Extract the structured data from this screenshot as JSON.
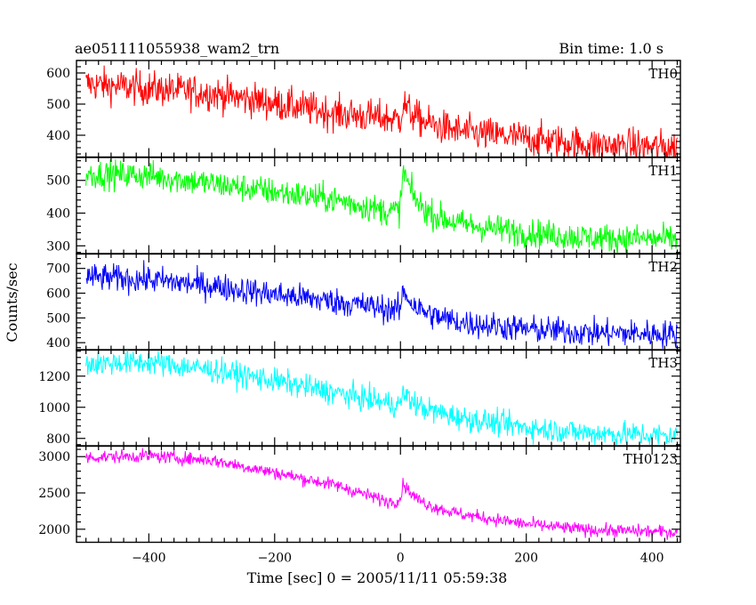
{
  "header": {
    "title": "ae051111055938_wam2_trn",
    "bin_time": "Bin time: 1.0 s"
  },
  "axes": {
    "xlabel": "Time [sec] 0 = 2005/11/11 05:59:38",
    "ylabel": "Counts/sec",
    "xlim": [
      -515,
      445
    ],
    "xticks": [
      -400,
      -200,
      0,
      200,
      400
    ],
    "xtick_labels": [
      "−400",
      "−200",
      "0",
      "200",
      "400"
    ]
  },
  "chart_data": {
    "type": "line",
    "title": "ae051111055938_wam2_trn",
    "xlabel": "Time [sec] 0 = 2005/11/11 05:59:38",
    "ylabel": "Counts/sec",
    "bin_time_s": 1.0,
    "x_range": [
      -500,
      440
    ],
    "grid": false,
    "panels": [
      {
        "name": "TH0",
        "color": "#ff0000",
        "ylim": [
          330,
          640
        ],
        "yticks": [
          400,
          500,
          600
        ],
        "ytick_labels": [
          "400",
          "500",
          "600"
        ],
        "trend": [
          [
            -500,
            565
          ],
          [
            -300,
            535
          ],
          [
            -100,
            470
          ],
          [
            0,
            450
          ],
          [
            100,
            410
          ],
          [
            200,
            390
          ],
          [
            300,
            370
          ],
          [
            440,
            360
          ]
        ],
        "noise": 28,
        "flare": {
          "t": 5,
          "peak": 505
        }
      },
      {
        "name": "TH1",
        "color": "#00ff00",
        "ylim": [
          275,
          570
        ],
        "yticks": [
          300,
          400,
          500
        ],
        "ytick_labels": [
          "300",
          "400",
          "500"
        ],
        "trend": [
          [
            -500,
            520
          ],
          [
            -400,
            515
          ],
          [
            -300,
            490
          ],
          [
            -200,
            465
          ],
          [
            -100,
            440
          ],
          [
            -20,
            405
          ],
          [
            0,
            410
          ],
          [
            100,
            365
          ],
          [
            200,
            340
          ],
          [
            300,
            325
          ],
          [
            440,
            320
          ]
        ],
        "noise": 22,
        "flare": {
          "t": 5,
          "peak": 535
        }
      },
      {
        "name": "TH2",
        "color": "#0000ff",
        "ylim": [
          370,
          760
        ],
        "yticks": [
          400,
          500,
          600,
          700
        ],
        "ytick_labels": [
          "400",
          "500",
          "600",
          "700"
        ],
        "trend": [
          [
            -500,
            665
          ],
          [
            -400,
            655
          ],
          [
            -300,
            630
          ],
          [
            -200,
            595
          ],
          [
            -100,
            565
          ],
          [
            0,
            530
          ],
          [
            100,
            480
          ],
          [
            200,
            455
          ],
          [
            300,
            440
          ],
          [
            440,
            435
          ]
        ],
        "noise": 28,
        "flare": {
          "t": 5,
          "peak": 615
        }
      },
      {
        "name": "TH3",
        "color": "#00ffff",
        "ylim": [
          750,
          1370
        ],
        "yticks": [
          800,
          1000,
          1200
        ],
        "ytick_labels": [
          "800",
          "1000",
          "1200"
        ],
        "trend": [
          [
            -500,
            1280
          ],
          [
            -400,
            1290
          ],
          [
            -300,
            1240
          ],
          [
            -200,
            1170
          ],
          [
            -100,
            1090
          ],
          [
            0,
            1010
          ],
          [
            100,
            930
          ],
          [
            200,
            870
          ],
          [
            300,
            835
          ],
          [
            440,
            815
          ]
        ],
        "noise": 40,
        "flare": {
          "t": 5,
          "peak": 1100
        }
      },
      {
        "name": "TH0123",
        "color": "#ff00ff",
        "ylim": [
          1820,
          3150
        ],
        "yticks": [
          2000,
          2500,
          3000
        ],
        "ytick_labels": [
          "2000",
          "2500",
          "3000"
        ],
        "trend": [
          [
            -500,
            2990
          ],
          [
            -400,
            3010
          ],
          [
            -300,
            2950
          ],
          [
            -200,
            2780
          ],
          [
            -100,
            2600
          ],
          [
            -20,
            2380
          ],
          [
            0,
            2400
          ],
          [
            100,
            2200
          ],
          [
            200,
            2070
          ],
          [
            300,
            1990
          ],
          [
            440,
            1960
          ]
        ],
        "noise": 45,
        "flare": {
          "t": 5,
          "peak": 2650
        }
      }
    ]
  }
}
